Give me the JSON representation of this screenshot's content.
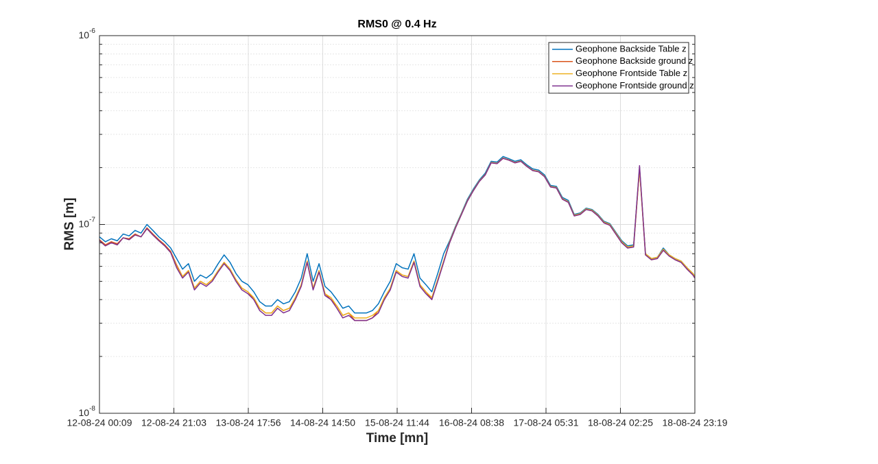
{
  "chart_data": {
    "type": "line",
    "title": "RMS0 @ 0.4 Hz",
    "xlabel": "Time [mn]",
    "ylabel": "RMS [m]",
    "yscale": "log",
    "grid": true,
    "minor_grid": true,
    "legend": "top-right",
    "xlim": [
      0,
      10032
    ],
    "xticks": [
      {
        "value": 0,
        "label": "12-08-24 00:09"
      },
      {
        "value": 1254,
        "label": "12-08-24 21:03"
      },
      {
        "value": 2508,
        "label": "13-08-24 17:56"
      },
      {
        "value": 3762,
        "label": "14-08-24 14:50"
      },
      {
        "value": 5016,
        "label": "15-08-24 11:44"
      },
      {
        "value": 6270,
        "label": "16-08-24 08:38"
      },
      {
        "value": 7524,
        "label": "17-08-24 05:31"
      },
      {
        "value": 8778,
        "label": "18-08-24 02:25"
      },
      {
        "value": 10032,
        "label": "18-08-24 23:19"
      }
    ],
    "ylim": [
      1e-08,
      1e-06
    ],
    "yticks": [
      {
        "value": 1e-08,
        "label": "10^-8"
      },
      {
        "value": 1e-07,
        "label": "10^-7"
      },
      {
        "value": 1e-06,
        "label": "10^-6"
      }
    ],
    "x": [
      0,
      100,
      200,
      300,
      400,
      500,
      600,
      700,
      800,
      900,
      1000,
      1100,
      1200,
      1300,
      1400,
      1500,
      1600,
      1700,
      1800,
      1900,
      2000,
      2100,
      2200,
      2300,
      2400,
      2500,
      2600,
      2700,
      2800,
      2900,
      3000,
      3100,
      3200,
      3300,
      3400,
      3500,
      3600,
      3700,
      3800,
      3900,
      4000,
      4100,
      4200,
      4300,
      4400,
      4500,
      4600,
      4700,
      4800,
      4900,
      5000,
      5100,
      5200,
      5300,
      5400,
      5500,
      5600,
      5700,
      5800,
      5900,
      6000,
      6100,
      6200,
      6300,
      6400,
      6500,
      6600,
      6700,
      6800,
      6900,
      7000,
      7100,
      7200,
      7300,
      7400,
      7500,
      7600,
      7700,
      7800,
      7900,
      8000,
      8100,
      8200,
      8300,
      8400,
      8500,
      8600,
      8700,
      8800,
      8900,
      9000,
      9100,
      9200,
      9300,
      9400,
      9500,
      9600,
      9700,
      9800,
      9900,
      10000,
      10032
    ],
    "series": [
      {
        "name": "Geophone Backside Table z",
        "color": "#0072bd",
        "values": [
          8.6e-08,
          8.1e-08,
          8.4e-08,
          8.2e-08,
          8.9e-08,
          8.7e-08,
          9.3e-08,
          9e-08,
          1e-07,
          9.3e-08,
          8.6e-08,
          8.1e-08,
          7.5e-08,
          6.6e-08,
          5.8e-08,
          6.2e-08,
          5e-08,
          5.4e-08,
          5.2e-08,
          5.5e-08,
          6.2e-08,
          6.9e-08,
          6.3e-08,
          5.5e-08,
          5e-08,
          4.8e-08,
          4.4e-08,
          3.9e-08,
          3.7e-08,
          3.7e-08,
          4e-08,
          3.8e-08,
          3.9e-08,
          4.4e-08,
          5.2e-08,
          7e-08,
          5e-08,
          6.2e-08,
          4.7e-08,
          4.4e-08,
          4e-08,
          3.6e-08,
          3.7e-08,
          3.4e-08,
          3.4e-08,
          3.4e-08,
          3.5e-08,
          3.8e-08,
          4.4e-08,
          5e-08,
          6.2e-08,
          5.9e-08,
          5.8e-08,
          7e-08,
          5.2e-08,
          4.8e-08,
          4.4e-08,
          5.5e-08,
          7e-08,
          8.2e-08,
          9.8e-08,
          1.15e-07,
          1.36e-07,
          1.54e-07,
          1.72e-07,
          1.87e-07,
          2.16e-07,
          2.14e-07,
          2.29e-07,
          2.23e-07,
          2.16e-07,
          2.2e-07,
          2.07e-07,
          1.97e-07,
          1.94e-07,
          1.83e-07,
          1.61e-07,
          1.59e-07,
          1.39e-07,
          1.34e-07,
          1.13e-07,
          1.15e-07,
          1.22e-07,
          1.2e-07,
          1.13e-07,
          1.04e-07,
          1.01e-07,
          9.1e-08,
          8.2e-08,
          7.7e-08,
          7.8e-08,
          2e-07,
          7e-08,
          6.6e-08,
          6.7e-08,
          7.5e-08,
          6.9e-08,
          6.6e-08,
          6.4e-08,
          5.9e-08,
          5.5e-08,
          5.3e-08
        ]
      },
      {
        "name": "Geophone Backside ground z",
        "color": "#d95319",
        "values": [
          8.3e-08,
          7.8e-08,
          8.1e-08,
          7.9e-08,
          8.5e-08,
          8.4e-08,
          8.9e-08,
          8.6e-08,
          9.6e-08,
          8.9e-08,
          8.3e-08,
          7.8e-08,
          7.2e-08,
          6.1e-08,
          5.3e-08,
          5.7e-08,
          4.6e-08,
          5e-08,
          4.8e-08,
          5.1e-08,
          5.7e-08,
          6.3e-08,
          5.8e-08,
          5.1e-08,
          4.6e-08,
          4.4e-08,
          4e-08,
          3.6e-08,
          3.4e-08,
          3.4e-08,
          3.7e-08,
          3.5e-08,
          3.6e-08,
          4e-08,
          4.8e-08,
          6.4e-08,
          4.6e-08,
          5.7e-08,
          4.3e-08,
          4e-08,
          3.7e-08,
          3.3e-08,
          3.4e-08,
          3.1e-08,
          3.1e-08,
          3.1e-08,
          3.2e-08,
          3.5e-08,
          4e-08,
          4.6e-08,
          5.7e-08,
          5.4e-08,
          5.3e-08,
          6.4e-08,
          4.8e-08,
          4.4e-08,
          4e-08,
          5.1e-08,
          6.4e-08,
          8e-08,
          9.6e-08,
          1.13e-07,
          1.33e-07,
          1.51e-07,
          1.69e-07,
          1.83e-07,
          2.12e-07,
          2.1e-07,
          2.24e-07,
          2.19e-07,
          2.12e-07,
          2.16e-07,
          2.03e-07,
          1.93e-07,
          1.9e-07,
          1.79e-07,
          1.58e-07,
          1.56e-07,
          1.36e-07,
          1.31e-07,
          1.11e-07,
          1.13e-07,
          1.2e-07,
          1.18e-07,
          1.11e-07,
          1.02e-07,
          9.9e-08,
          8.9e-08,
          8e-08,
          7.5e-08,
          7.6e-08,
          1.96e-07,
          6.9e-08,
          6.5e-08,
          6.6e-08,
          7.3e-08,
          6.8e-08,
          6.5e-08,
          6.3e-08,
          5.8e-08,
          5.4e-08,
          5.2e-08
        ]
      },
      {
        "name": "Geophone Frontside Table z",
        "color": "#edb120",
        "values": [
          8.2e-08,
          7.7e-08,
          8e-08,
          7.8e-08,
          8.5e-08,
          8.3e-08,
          8.8e-08,
          8.6e-08,
          9.5e-08,
          8.8e-08,
          8.2e-08,
          7.7e-08,
          7.1e-08,
          6e-08,
          5.3e-08,
          5.7e-08,
          4.6e-08,
          5e-08,
          4.8e-08,
          5.1e-08,
          5.7e-08,
          6.3e-08,
          5.8e-08,
          5.1e-08,
          4.6e-08,
          4.4e-08,
          4.1e-08,
          3.6e-08,
          3.4e-08,
          3.4e-08,
          3.7e-08,
          3.5e-08,
          3.6e-08,
          4.1e-08,
          4.8e-08,
          6.4e-08,
          4.6e-08,
          5.7e-08,
          4.3e-08,
          4.1e-08,
          3.7e-08,
          3.3e-08,
          3.4e-08,
          3.2e-08,
          3.2e-08,
          3.2e-08,
          3.3e-08,
          3.5e-08,
          4.1e-08,
          4.6e-08,
          5.7e-08,
          5.4e-08,
          5.3e-08,
          6.4e-08,
          4.8e-08,
          4.4e-08,
          4.1e-08,
          5.1e-08,
          6.4e-08,
          8.1e-08,
          9.7e-08,
          1.14e-07,
          1.34e-07,
          1.52e-07,
          1.7e-07,
          1.84e-07,
          2.13e-07,
          2.11e-07,
          2.25e-07,
          2.2e-07,
          2.13e-07,
          2.17e-07,
          2.04e-07,
          1.94e-07,
          1.91e-07,
          1.8e-07,
          1.59e-07,
          1.57e-07,
          1.37e-07,
          1.32e-07,
          1.12e-07,
          1.14e-07,
          1.21e-07,
          1.19e-07,
          1.12e-07,
          1.03e-07,
          1e-07,
          9e-08,
          8.1e-08,
          7.6e-08,
          7.7e-08,
          1.97e-07,
          7e-08,
          6.6e-08,
          6.7e-08,
          7.4e-08,
          6.9e-08,
          6.6e-08,
          6.4e-08,
          5.9e-08,
          5.5e-08,
          5.3e-08
        ]
      },
      {
        "name": "Geophone Frontside ground z",
        "color": "#7e2f8e",
        "values": [
          8.2e-08,
          7.7e-08,
          8e-08,
          7.8e-08,
          8.5e-08,
          8.3e-08,
          8.8e-08,
          8.6e-08,
          9.5e-08,
          8.8e-08,
          8.2e-08,
          7.7e-08,
          7.1e-08,
          5.9e-08,
          5.2e-08,
          5.6e-08,
          4.5e-08,
          4.9e-08,
          4.7e-08,
          5e-08,
          5.6e-08,
          6.2e-08,
          5.7e-08,
          5e-08,
          4.5e-08,
          4.3e-08,
          4e-08,
          3.5e-08,
          3.3e-08,
          3.3e-08,
          3.6e-08,
          3.4e-08,
          3.5e-08,
          4e-08,
          4.7e-08,
          6.3e-08,
          4.5e-08,
          5.6e-08,
          4.2e-08,
          4e-08,
          3.6e-08,
          3.2e-08,
          3.3e-08,
          3.1e-08,
          3.1e-08,
          3.1e-08,
          3.2e-08,
          3.4e-08,
          4e-08,
          4.5e-08,
          5.6e-08,
          5.3e-08,
          5.2e-08,
          6.3e-08,
          4.7e-08,
          4.3e-08,
          4e-08,
          5e-08,
          6.3e-08,
          8e-08,
          9.6e-08,
          1.13e-07,
          1.33e-07,
          1.51e-07,
          1.69e-07,
          1.83e-07,
          2.12e-07,
          2.1e-07,
          2.24e-07,
          2.19e-07,
          2.12e-07,
          2.16e-07,
          2.03e-07,
          1.93e-07,
          1.9e-07,
          1.79e-07,
          1.58e-07,
          1.56e-07,
          1.36e-07,
          1.31e-07,
          1.11e-07,
          1.13e-07,
          1.2e-07,
          1.18e-07,
          1.11e-07,
          1.02e-07,
          9.9e-08,
          8.9e-08,
          8e-08,
          7.5e-08,
          7.6e-08,
          2.05e-07,
          6.9e-08,
          6.5e-08,
          6.6e-08,
          7.3e-08,
          6.8e-08,
          6.5e-08,
          6.3e-08,
          5.8e-08,
          5.4e-08,
          5.2e-08
        ]
      }
    ]
  }
}
